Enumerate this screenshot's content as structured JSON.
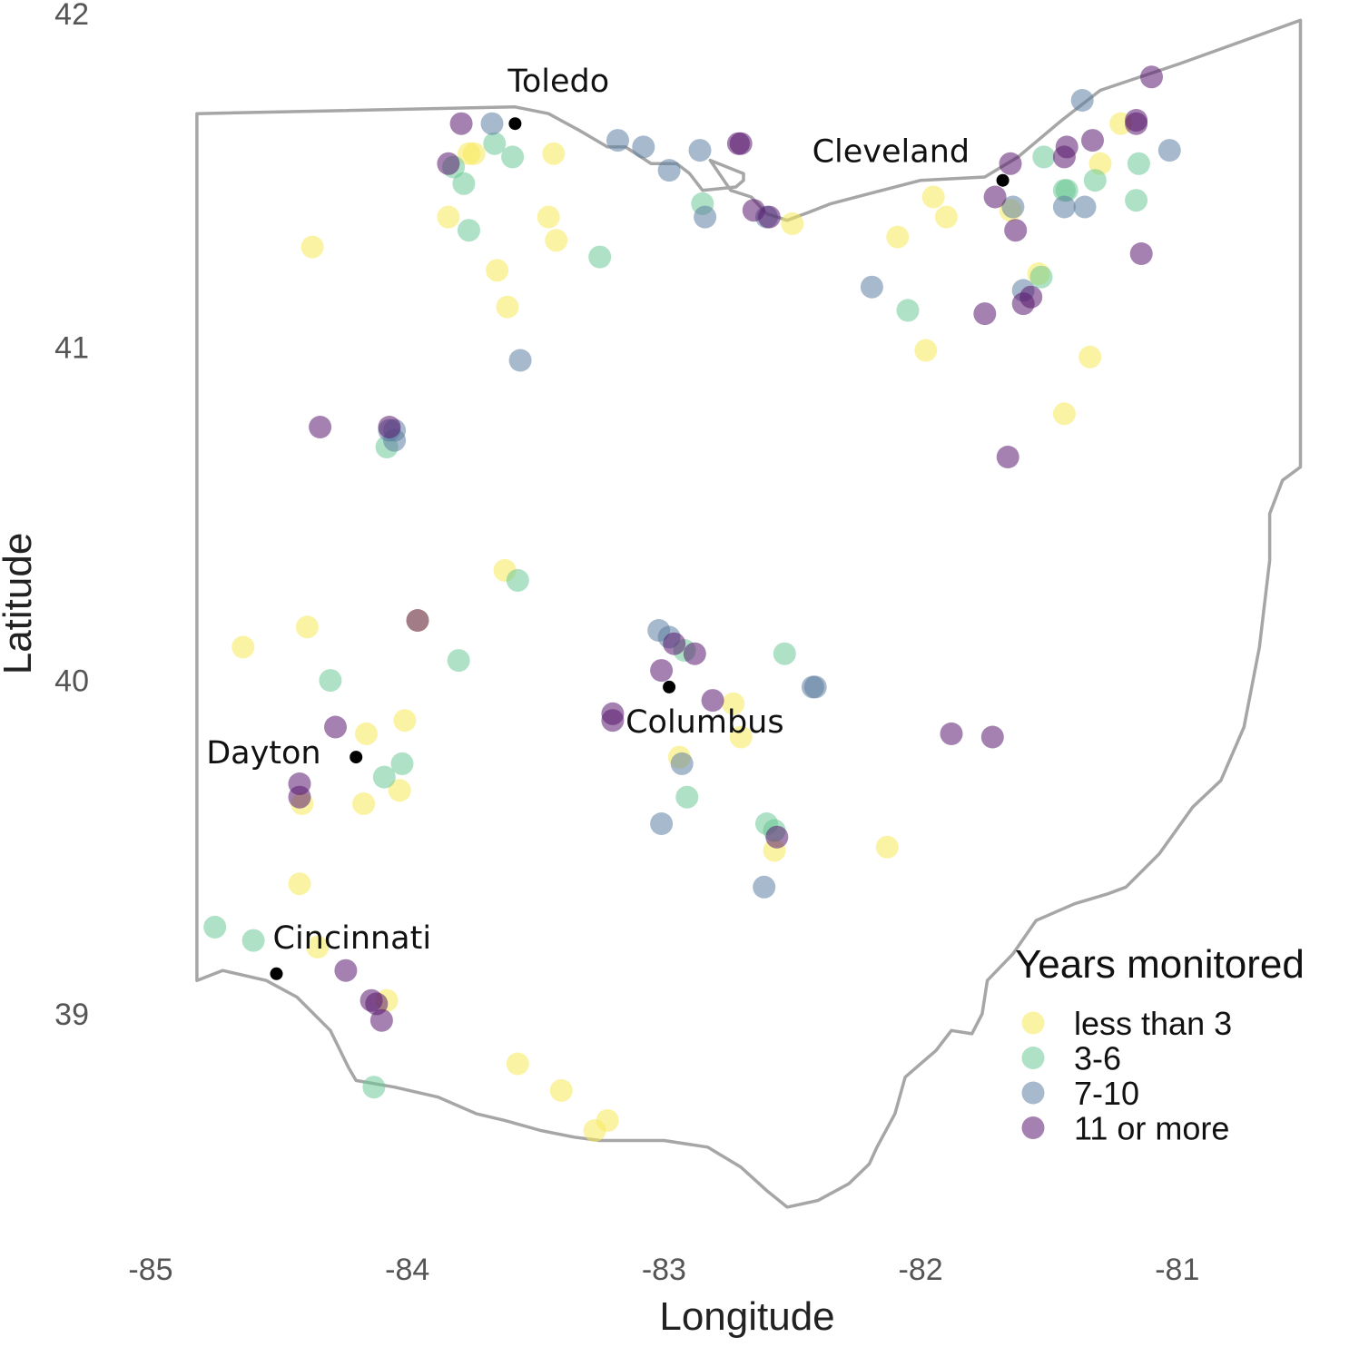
{
  "chart_data": {
    "type": "scatter",
    "title": "",
    "xlabel": "Longitude",
    "ylabel": "Latitude",
    "xlim": [
      -85,
      -80.5
    ],
    "ylim": [
      38.4,
      42
    ],
    "x_ticks": [
      "-85",
      "-84",
      "-83",
      "-82",
      "-81"
    ],
    "y_ticks": [
      "39",
      "40",
      "41",
      "42"
    ],
    "grid": false,
    "legend": {
      "title": "Years monitored",
      "placement": "bottom-right",
      "entries": [
        "less than 3",
        "3-6",
        "7-10",
        "11 or more"
      ]
    },
    "colors": {
      "less than 3": "#f7e95a",
      "3-6": "#6cc895",
      "7-10": "#5f7fa3",
      "11 or more": "#5a1a6f",
      "border": "#a6a6a6",
      "city": "#000000"
    },
    "boundary": [
      [
        -84.82,
        41.7
      ],
      [
        -83.58,
        41.72
      ],
      [
        -83.45,
        41.7
      ],
      [
        -83.33,
        41.65
      ],
      [
        -83.22,
        41.6
      ],
      [
        -83.15,
        41.6
      ],
      [
        -83.05,
        41.55
      ],
      [
        -82.95,
        41.55
      ],
      [
        -82.9,
        41.52
      ],
      [
        -82.85,
        41.47
      ],
      [
        -82.72,
        41.48
      ],
      [
        -82.69,
        41.5
      ],
      [
        -82.69,
        41.52
      ],
      [
        -82.82,
        41.56
      ],
      [
        -82.74,
        41.47
      ],
      [
        -82.66,
        41.45
      ],
      [
        -82.6,
        41.4
      ],
      [
        -82.52,
        41.38
      ],
      [
        -82.45,
        41.4
      ],
      [
        -82.35,
        41.43
      ],
      [
        -82.2,
        41.46
      ],
      [
        -82.0,
        41.5
      ],
      [
        -81.75,
        41.51
      ],
      [
        -81.62,
        41.57
      ],
      [
        -81.45,
        41.68
      ],
      [
        -81.3,
        41.77
      ],
      [
        -80.99,
        41.85
      ],
      [
        -80.52,
        41.98
      ],
      [
        -80.52,
        40.64
      ],
      [
        -80.59,
        40.6
      ],
      [
        -80.64,
        40.5
      ],
      [
        -80.64,
        40.36
      ],
      [
        -80.68,
        40.1
      ],
      [
        -80.74,
        39.86
      ],
      [
        -80.83,
        39.7
      ],
      [
        -80.94,
        39.62
      ],
      [
        -81.07,
        39.48
      ],
      [
        -81.2,
        39.38
      ],
      [
        -81.27,
        39.36
      ],
      [
        -81.4,
        39.33
      ],
      [
        -81.55,
        39.28
      ],
      [
        -81.64,
        39.18
      ],
      [
        -81.74,
        39.1
      ],
      [
        -81.76,
        39.0
      ],
      [
        -81.8,
        38.94
      ],
      [
        -81.88,
        38.95
      ],
      [
        -81.94,
        38.89
      ],
      [
        -82.06,
        38.81
      ],
      [
        -82.1,
        38.7
      ],
      [
        -82.17,
        38.6
      ],
      [
        -82.2,
        38.55
      ],
      [
        -82.28,
        38.49
      ],
      [
        -82.4,
        38.44
      ],
      [
        -82.52,
        38.42
      ],
      [
        -82.6,
        38.47
      ],
      [
        -82.7,
        38.54
      ],
      [
        -82.83,
        38.6
      ],
      [
        -83.0,
        38.62
      ],
      [
        -83.1,
        38.62
      ],
      [
        -83.25,
        38.62
      ],
      [
        -83.35,
        38.63
      ],
      [
        -83.48,
        38.65
      ],
      [
        -83.62,
        38.68
      ],
      [
        -83.73,
        38.7
      ],
      [
        -83.88,
        38.75
      ],
      [
        -84.05,
        38.78
      ],
      [
        -84.2,
        38.8
      ],
      [
        -84.23,
        38.84
      ],
      [
        -84.3,
        38.95
      ],
      [
        -84.43,
        39.05
      ],
      [
        -84.55,
        39.1
      ],
      [
        -84.72,
        39.13
      ],
      [
        -84.82,
        39.1
      ],
      [
        -84.82,
        41.7
      ]
    ],
    "cities": [
      {
        "name": "Toledo",
        "lon": -83.58,
        "lat": 41.67
      },
      {
        "name": "Cleveland",
        "lon": -81.68,
        "lat": 41.5
      },
      {
        "name": "Columbus",
        "lon": -82.98,
        "lat": 39.98
      },
      {
        "name": "Dayton",
        "lon": -84.2,
        "lat": 39.77
      },
      {
        "name": "Cincinnati",
        "lon": -84.51,
        "lat": 39.12
      }
    ],
    "series": [
      {
        "name": "less than 3",
        "points": [
          [
            -83.76,
            41.58
          ],
          [
            -83.74,
            41.58
          ],
          [
            -83.43,
            41.58
          ],
          [
            -83.84,
            41.39
          ],
          [
            -83.45,
            41.39
          ],
          [
            -83.42,
            41.32
          ],
          [
            -84.37,
            41.3
          ],
          [
            -83.65,
            41.23
          ],
          [
            -83.61,
            41.12
          ],
          [
            -82.5,
            41.37
          ],
          [
            -82.09,
            41.33
          ],
          [
            -81.95,
            41.45
          ],
          [
            -81.9,
            41.39
          ],
          [
            -81.65,
            41.41
          ],
          [
            -81.54,
            41.22
          ],
          [
            -81.3,
            41.55
          ],
          [
            -81.22,
            41.67
          ],
          [
            -81.98,
            40.99
          ],
          [
            -81.34,
            40.97
          ],
          [
            -81.44,
            40.8
          ],
          [
            -83.62,
            40.33
          ],
          [
            -84.39,
            40.16
          ],
          [
            -84.64,
            40.1
          ],
          [
            -83.96,
            40.18
          ],
          [
            -84.16,
            39.84
          ],
          [
            -84.01,
            39.88
          ],
          [
            -84.03,
            39.67
          ],
          [
            -84.17,
            39.63
          ],
          [
            -84.41,
            39.63
          ],
          [
            -82.73,
            39.93
          ],
          [
            -82.7,
            39.83
          ],
          [
            -82.94,
            39.77
          ],
          [
            -82.57,
            39.49
          ],
          [
            -82.13,
            39.5
          ],
          [
            -84.42,
            39.39
          ],
          [
            -84.35,
            39.2
          ],
          [
            -84.08,
            39.04
          ],
          [
            -83.57,
            38.85
          ],
          [
            -83.4,
            38.77
          ],
          [
            -83.22,
            38.68
          ],
          [
            -83.27,
            38.65
          ]
        ]
      },
      {
        "name": "3-6",
        "points": [
          [
            -83.82,
            41.54
          ],
          [
            -83.78,
            41.49
          ],
          [
            -83.66,
            41.61
          ],
          [
            -83.59,
            41.57
          ],
          [
            -83.76,
            41.35
          ],
          [
            -83.25,
            41.27
          ],
          [
            -82.85,
            41.43
          ],
          [
            -81.52,
            41.57
          ],
          [
            -81.44,
            41.47
          ],
          [
            -81.43,
            41.47
          ],
          [
            -81.32,
            41.5
          ],
          [
            -81.15,
            41.55
          ],
          [
            -81.16,
            41.44
          ],
          [
            -82.05,
            41.11
          ],
          [
            -81.53,
            41.21
          ],
          [
            -84.08,
            40.7
          ],
          [
            -83.57,
            40.3
          ],
          [
            -84.3,
            40.0
          ],
          [
            -83.8,
            40.06
          ],
          [
            -82.92,
            40.09
          ],
          [
            -82.53,
            40.08
          ],
          [
            -84.02,
            39.75
          ],
          [
            -84.09,
            39.71
          ],
          [
            -82.91,
            39.65
          ],
          [
            -82.6,
            39.57
          ],
          [
            -82.57,
            39.55
          ],
          [
            -84.75,
            39.26
          ],
          [
            -84.6,
            39.22
          ],
          [
            -84.13,
            38.78
          ]
        ]
      },
      {
        "name": "7-10",
        "points": [
          [
            -83.67,
            41.67
          ],
          [
            -83.18,
            41.62
          ],
          [
            -83.08,
            41.6
          ],
          [
            -82.98,
            41.53
          ],
          [
            -82.86,
            41.59
          ],
          [
            -82.84,
            41.39
          ],
          [
            -82.6,
            41.39
          ],
          [
            -81.37,
            41.74
          ],
          [
            -81.03,
            41.59
          ],
          [
            -81.64,
            41.42
          ],
          [
            -81.44,
            41.42
          ],
          [
            -81.36,
            41.42
          ],
          [
            -82.19,
            41.18
          ],
          [
            -81.6,
            41.17
          ],
          [
            -83.56,
            40.96
          ],
          [
            -84.05,
            40.75
          ],
          [
            -84.07,
            40.75
          ],
          [
            -84.05,
            40.72
          ],
          [
            -83.02,
            40.15
          ],
          [
            -82.98,
            40.13
          ],
          [
            -82.42,
            39.98
          ],
          [
            -82.41,
            39.98
          ],
          [
            -82.93,
            39.75
          ],
          [
            -83.01,
            39.57
          ],
          [
            -82.61,
            39.38
          ]
        ]
      },
      {
        "name": "11 or more",
        "points": [
          [
            -83.79,
            41.67
          ],
          [
            -83.84,
            41.55
          ],
          [
            -82.71,
            41.61
          ],
          [
            -82.7,
            41.61
          ],
          [
            -82.65,
            41.41
          ],
          [
            -82.59,
            41.39
          ],
          [
            -81.1,
            41.81
          ],
          [
            -81.16,
            41.68
          ],
          [
            -81.16,
            41.67
          ],
          [
            -81.33,
            41.62
          ],
          [
            -81.43,
            41.6
          ],
          [
            -81.44,
            41.57
          ],
          [
            -81.65,
            41.55
          ],
          [
            -81.71,
            41.45
          ],
          [
            -81.63,
            41.35
          ],
          [
            -81.14,
            41.28
          ],
          [
            -81.57,
            41.15
          ],
          [
            -81.6,
            41.13
          ],
          [
            -81.75,
            41.1
          ],
          [
            -81.66,
            40.67
          ],
          [
            -84.34,
            40.76
          ],
          [
            -84.07,
            40.76
          ],
          [
            -83.96,
            40.18
          ],
          [
            -83.01,
            40.03
          ],
          [
            -82.88,
            40.08
          ],
          [
            -82.96,
            40.11
          ],
          [
            -82.81,
            39.94
          ],
          [
            -83.2,
            39.9
          ],
          [
            -83.2,
            39.88
          ],
          [
            -81.88,
            39.84
          ],
          [
            -81.72,
            39.83
          ],
          [
            -84.28,
            39.86
          ],
          [
            -84.42,
            39.69
          ],
          [
            -84.42,
            39.65
          ],
          [
            -82.56,
            39.53
          ],
          [
            -84.24,
            39.13
          ],
          [
            -84.14,
            39.04
          ],
          [
            -84.12,
            39.03
          ],
          [
            -84.1,
            38.98
          ]
        ]
      }
    ]
  }
}
